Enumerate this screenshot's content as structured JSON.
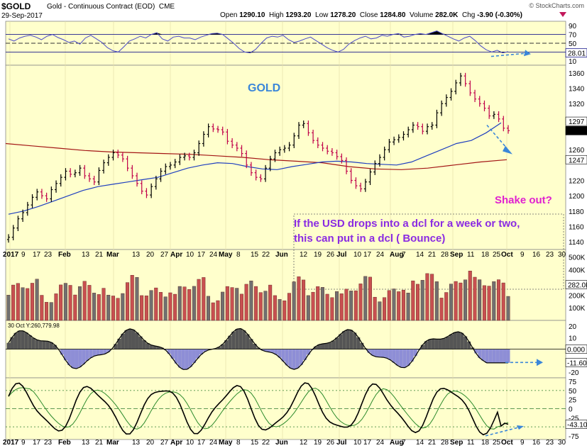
{
  "header": {
    "symbol": "$GOLD",
    "name": "Gold - Continuous Contract (EOD)",
    "exchange": "CME",
    "date": "29-Sep-2017",
    "brand": "© StockCharts.com",
    "open_label": "Open",
    "open": "1290.10",
    "high_label": "High",
    "high": "1293.20",
    "low_label": "Low",
    "low": "1278.20",
    "close_label": "Close",
    "close": "1284.80",
    "volume_label": "Volume",
    "volume": "282.0K",
    "chg_label": "Chg",
    "chg": "-3.90 (-0.30%)"
  },
  "colors": {
    "panel_bg": "#ffffcc",
    "up_bar": "#000000",
    "down_bar": "#c0004a",
    "ma_blue": "#1f3fbf",
    "ma_red": "#a31515",
    "annotation_blue": "#3a86d9",
    "annotation_magenta": "#e020d0",
    "annotation_purple": "#8a2be2",
    "macd_pos": "#555555",
    "macd_neg": "#8e8ed6"
  },
  "annotations": {
    "gold": "GOLD",
    "shake_out": "Shake out?",
    "usd_line1": "If the USD drops into a dcl for a week or two,",
    "usd_line2": "this can  put in a dcl ( Bounce)"
  },
  "macd_label": "30 Oct Y:260,779.98",
  "x_axis_labels": [
    "2017",
    "9",
    "17",
    "23",
    "Feb",
    "13",
    "21",
    "Mar",
    "13",
    "20",
    "27",
    "Apr",
    "10",
    "17",
    "24",
    "May",
    "8",
    "15",
    "22",
    "Jun",
    "12",
    "19",
    "26",
    "Jul",
    "10",
    "17",
    "24",
    "Aug",
    "7",
    "14",
    "21",
    "28",
    "Sep",
    "11",
    "18",
    "25",
    "Oct",
    "9",
    "16",
    "23",
    "30"
  ],
  "chart_data": [
    {
      "type": "line",
      "panel": "rsi",
      "y_ticks": [
        "90",
        "70",
        "50",
        "30",
        "10"
      ],
      "current_value": "28.01",
      "ylim": [
        0,
        100
      ]
    },
    {
      "type": "ohlc",
      "panel": "price",
      "title": "GOLD",
      "y_ticks": [
        "1360",
        "1340",
        "1320",
        "1300",
        "1280",
        "1260",
        "1240",
        "1220",
        "1200",
        "1180",
        "1160",
        "1140"
      ],
      "ylim": [
        1130,
        1370
      ],
      "last_price_tags": [
        "1297",
        "1284.8",
        "1247"
      ],
      "closes": [
        1146,
        1158,
        1170,
        1178,
        1188,
        1198,
        1205,
        1200,
        1196,
        1208,
        1216,
        1224,
        1232,
        1228,
        1230,
        1236,
        1226,
        1222,
        1218,
        1233,
        1243,
        1250,
        1256,
        1253,
        1248,
        1236,
        1226,
        1216,
        1206,
        1201,
        1212,
        1222,
        1232,
        1238,
        1240,
        1244,
        1250,
        1252,
        1250,
        1256,
        1268,
        1280,
        1290,
        1287,
        1286,
        1283,
        1271,
        1266,
        1262,
        1255,
        1240,
        1230,
        1224,
        1222,
        1236,
        1248,
        1256,
        1260,
        1262,
        1266,
        1278,
        1292,
        1294,
        1282,
        1272,
        1266,
        1262,
        1258,
        1256,
        1251,
        1246,
        1232,
        1220,
        1213,
        1209,
        1218,
        1231,
        1242,
        1250,
        1260,
        1270,
        1273,
        1276,
        1280,
        1286,
        1292,
        1290,
        1284,
        1290,
        1292,
        1308,
        1320,
        1328,
        1336,
        1347,
        1356,
        1346,
        1334,
        1326,
        1320,
        1314,
        1304,
        1306,
        1300,
        1288,
        1284.8
      ],
      "ma_blue": [
        1176,
        1180,
        1186,
        1193,
        1200,
        1207,
        1212,
        1215,
        1218,
        1221,
        1224,
        1230,
        1236,
        1240,
        1243,
        1242,
        1238,
        1235,
        1234,
        1238,
        1241,
        1244,
        1245,
        1244,
        1242,
        1241,
        1240,
        1244,
        1252,
        1260,
        1268,
        1272,
        1282,
        1295
      ],
      "ma_red": [
        1268,
        1265,
        1262,
        1259,
        1257,
        1256,
        1255,
        1254,
        1252,
        1250,
        1247,
        1245,
        1243,
        1238,
        1235,
        1234,
        1236,
        1240,
        1244,
        1247
      ],
      "x_labels_on_axis": [
        "2017",
        "Feb",
        "Mar",
        "Apr",
        "May",
        "Jun",
        "Jul",
        "Aug",
        "Sep",
        "Oct"
      ]
    },
    {
      "type": "bar",
      "panel": "volume",
      "y_ticks": [
        "500K",
        "400K",
        "300K",
        "200K",
        "100K"
      ],
      "current_value": "282.0K",
      "ylim": [
        0,
        560000
      ]
    },
    {
      "type": "area",
      "panel": "macd_histogram",
      "y_ticks": [
        "20",
        "10",
        "0.000",
        "-10",
        "-20"
      ],
      "current_value": "-11.60",
      "ylim": [
        -25,
        25
      ]
    },
    {
      "type": "line",
      "panel": "stochastic",
      "y_ticks": [
        "75",
        "50",
        "25",
        "0",
        "-25",
        "-50",
        "-75"
      ],
      "current_value": "-43.10",
      "ylim": [
        -85,
        85
      ]
    }
  ]
}
